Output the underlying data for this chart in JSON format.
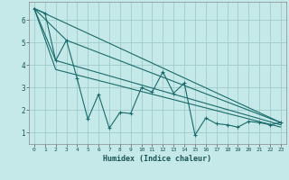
{
  "xlabel": "Humidex (Indice chaleur)",
  "bg_color": "#c5e8e8",
  "grid_color": "#a0cccc",
  "line_color": "#1a6b6b",
  "xlim": [
    -0.5,
    23.5
  ],
  "ylim": [
    0.5,
    6.8
  ],
  "yticks": [
    1,
    2,
    3,
    4,
    5,
    6
  ],
  "xticks": [
    0,
    1,
    2,
    3,
    4,
    5,
    6,
    7,
    8,
    9,
    10,
    11,
    12,
    13,
    14,
    15,
    16,
    17,
    18,
    19,
    20,
    21,
    22,
    23
  ],
  "main_x": [
    0,
    1,
    2,
    3,
    4,
    5,
    6,
    7,
    8,
    9,
    10,
    11,
    12,
    13,
    14,
    15,
    16,
    17,
    18,
    19,
    20,
    21,
    22,
    23
  ],
  "main_y": [
    6.5,
    6.3,
    4.2,
    5.1,
    3.4,
    1.6,
    2.7,
    1.2,
    1.9,
    1.85,
    3.0,
    2.8,
    3.7,
    2.75,
    3.2,
    0.9,
    1.65,
    1.4,
    1.35,
    1.25,
    1.5,
    1.45,
    1.35,
    1.45
  ],
  "trend_lines": [
    {
      "x": [
        0,
        23
      ],
      "y": [
        6.5,
        1.45
      ]
    },
    {
      "x": [
        0,
        3,
        23
      ],
      "y": [
        6.5,
        5.1,
        1.45
      ]
    },
    {
      "x": [
        0,
        2,
        23
      ],
      "y": [
        6.5,
        4.2,
        1.35
      ]
    },
    {
      "x": [
        0,
        2,
        23
      ],
      "y": [
        6.5,
        3.8,
        1.25
      ]
    }
  ]
}
